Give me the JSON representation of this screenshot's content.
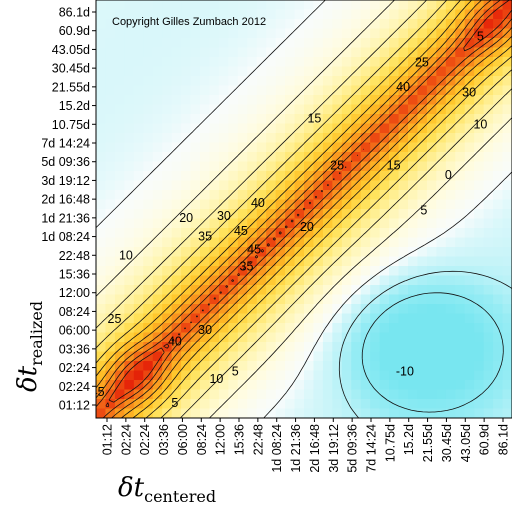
{
  "chart_data": {
    "type": "heatmap",
    "title": "",
    "copyright": "Copyright Gilles Zumbach 2012",
    "x_axis": {
      "symbol": "δt",
      "subscript": "centered",
      "ticks": [
        "01:12",
        "02:24",
        "02:24",
        "03:36",
        "06:00",
        "08:24",
        "12:00",
        "15:36",
        "22:48",
        "1d 08:24",
        "1d 21:36",
        "2d 16:48",
        "3d 19:12",
        "5d 09:36",
        "7d 14:24",
        "10.75d",
        "15.2d",
        "21.55d",
        "30.45d",
        "43.05d",
        "60.9d",
        "86.1d"
      ]
    },
    "y_axis": {
      "symbol": "δt",
      "subscript": "realized",
      "ticks": [
        "01:12",
        "02:24",
        "02:24",
        "03:36",
        "06:00",
        "08:24",
        "12:00",
        "15:36",
        "22:48",
        "1d 08:24",
        "1d 21:36",
        "2d 16:48",
        "3d 19:12",
        "5d 09:36",
        "7d 14:24",
        "10.75d",
        "15.2d",
        "21.55d",
        "30.45d",
        "43.05d",
        "60.9d",
        "86.1d"
      ]
    },
    "colorscale": "cyan (negative) - white (0) - yellow - orange - red (high)",
    "value_range": [
      -15,
      55
    ],
    "contour_labels": [
      {
        "value": "5",
        "near": [
          "19.8",
          "19.7"
        ]
      },
      {
        "value": "25",
        "near": [
          "16.7",
          "18.3"
        ]
      },
      {
        "value": "30",
        "near": [
          "19.2",
          "16.7"
        ]
      },
      {
        "value": "40",
        "near": [
          "15.7",
          "17.0"
        ]
      },
      {
        "value": "10",
        "near": [
          "19.8",
          "15.0"
        ]
      },
      {
        "value": "15",
        "near": [
          "11.0",
          "15.3"
        ]
      },
      {
        "value": "15",
        "near": [
          "15.2",
          "12.8"
        ]
      },
      {
        "value": "0",
        "near": [
          "18.1",
          "12.3"
        ]
      },
      {
        "value": "5",
        "near": [
          "16.8",
          "10.4"
        ]
      },
      {
        "value": "20",
        "near": [
          "4.2",
          "10.0"
        ]
      },
      {
        "value": "30",
        "near": [
          "6.2",
          "10.1"
        ]
      },
      {
        "value": "40",
        "near": [
          "8.0",
          "10.8"
        ]
      },
      {
        "value": "35",
        "near": [
          "5.2",
          "9.0"
        ]
      },
      {
        "value": "45",
        "near": [
          "7.1",
          "9.3"
        ]
      },
      {
        "value": "45",
        "near": [
          "7.8",
          "8.3"
        ]
      },
      {
        "value": "35",
        "near": [
          "7.4",
          "7.4"
        ]
      },
      {
        "value": "25",
        "near": [
          "12.2",
          "12.8"
        ]
      },
      {
        "value": "20",
        "near": [
          "10.6",
          "9.5"
        ]
      },
      {
        "value": "10",
        "near": [
          "1.0",
          "8.0"
        ]
      },
      {
        "value": "25",
        "near": [
          "0.4",
          "4.6"
        ]
      },
      {
        "value": "40",
        "near": [
          "3.6",
          "3.4"
        ]
      },
      {
        "value": "30",
        "near": [
          "5.2",
          "4.0"
        ]
      },
      {
        "value": "10",
        "near": [
          "5.8",
          "1.4"
        ]
      },
      {
        "value": "5",
        "near": [
          "6.8",
          "1.8"
        ]
      },
      {
        "value": "5",
        "near": [
          "3.6",
          "0.1"
        ]
      },
      {
        "value": "-10",
        "near": [
          "15.8",
          "1.8"
        ]
      },
      {
        "value": "45",
        "near": [
          "-0.5",
          "0.7"
        ]
      }
    ]
  }
}
